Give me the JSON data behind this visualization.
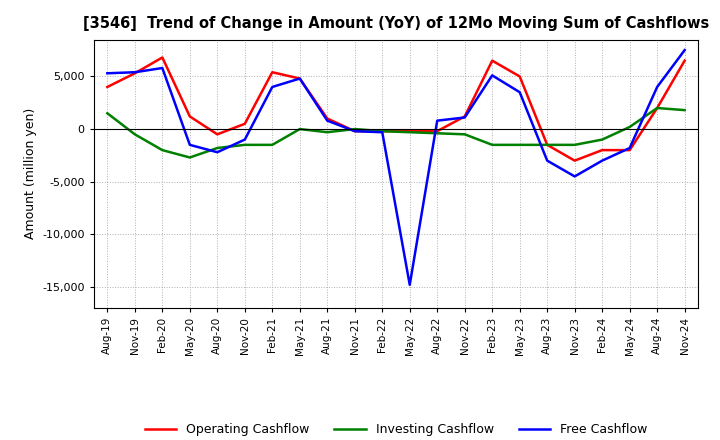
{
  "title": "[3546]  Trend of Change in Amount (YoY) of 12Mo Moving Sum of Cashflows",
  "ylabel": "Amount (million yen)",
  "ylim": [
    -17000,
    8500
  ],
  "yticks": [
    -15000,
    -10000,
    -5000,
    0,
    5000
  ],
  "background_color": "#ffffff",
  "grid_color": "#b0b0b0",
  "x_labels": [
    "Aug-19",
    "Nov-19",
    "Feb-20",
    "May-20",
    "Aug-20",
    "Nov-20",
    "Feb-21",
    "May-21",
    "Aug-21",
    "Nov-21",
    "Feb-22",
    "May-22",
    "Aug-22",
    "Nov-22",
    "Feb-23",
    "May-23",
    "Aug-23",
    "Nov-23",
    "Feb-24",
    "May-24",
    "Aug-24",
    "Nov-24"
  ],
  "operating": [
    4000,
    5300,
    6800,
    1200,
    -500,
    500,
    5400,
    4800,
    1000,
    -200,
    -200,
    -200,
    -200,
    1200,
    6500,
    5000,
    -1500,
    -3000,
    -2000,
    -2000,
    2000,
    6500
  ],
  "investing": [
    1500,
    -500,
    -2000,
    -2700,
    -1800,
    -1500,
    -1500,
    0,
    -300,
    0,
    -200,
    -300,
    -400,
    -500,
    -1500,
    -1500,
    -1500,
    -1500,
    -1000,
    200,
    2000,
    1800
  ],
  "free": [
    5300,
    5400,
    5800,
    -1500,
    -2200,
    -1000,
    4000,
    4800,
    800,
    -200,
    -300,
    -14800,
    800,
    1100,
    5100,
    3500,
    -3000,
    -4500,
    -3000,
    -1800,
    4000,
    7500
  ],
  "operating_color": "#ff0000",
  "investing_color": "#008000",
  "free_color": "#0000ff",
  "line_width": 1.8
}
